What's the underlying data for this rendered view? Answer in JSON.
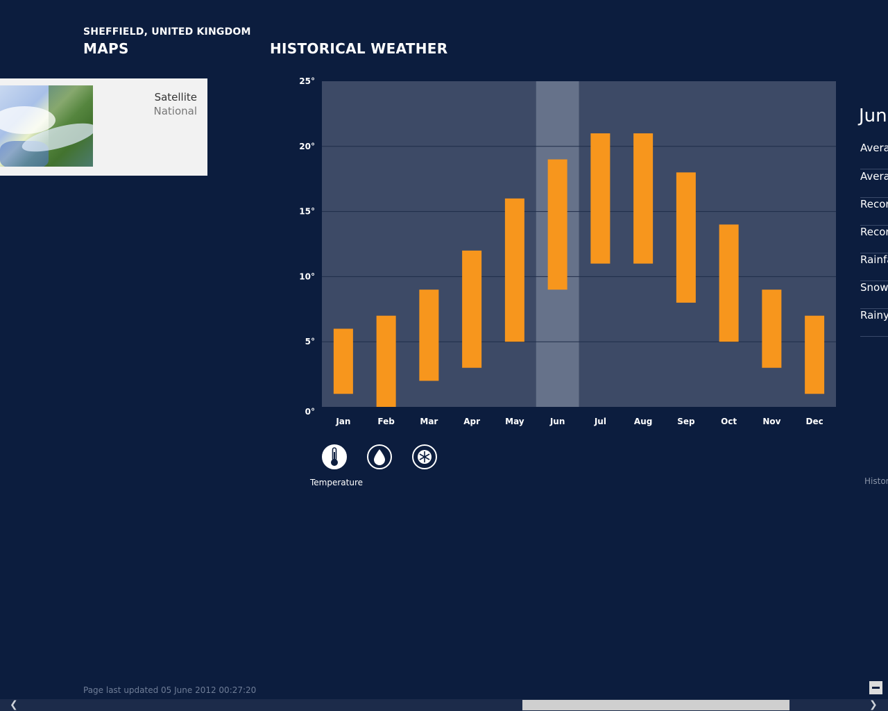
{
  "header": {
    "location": "SHEFFIELD, UNITED KINGDOM",
    "maps_title": "MAPS",
    "historical_title": "HISTORICAL WEATHER"
  },
  "map_tile": {
    "label": "Satellite",
    "sublabel": "National"
  },
  "chart_data": {
    "type": "bar",
    "subtype": "floating-range",
    "categories": [
      "Jan",
      "Feb",
      "Mar",
      "Apr",
      "May",
      "Jun",
      "Jul",
      "Aug",
      "Sep",
      "Oct",
      "Nov",
      "Dec"
    ],
    "series": [
      {
        "low": [
          1,
          0,
          2,
          3,
          5,
          9,
          11,
          11,
          8,
          5,
          3,
          1
        ],
        "high": [
          6,
          7,
          9,
          12,
          16,
          19,
          21,
          21,
          18,
          14,
          9,
          7
        ]
      }
    ],
    "yticks": [
      "0°",
      "5°",
      "10°",
      "15°",
      "20°",
      "25°"
    ],
    "ylim": [
      0,
      25
    ],
    "highlighted_category": "Jun",
    "grid": true,
    "bar_color": "#f7961d",
    "plot_bg": "#3d4a66",
    "highlight_bg": "#66728a"
  },
  "modes": {
    "temperature_label": "Temperature",
    "items": [
      {
        "icon": "thermometer-icon",
        "active": true
      },
      {
        "icon": "raindrop-icon",
        "active": false
      },
      {
        "icon": "snowflake-icon",
        "active": false
      }
    ]
  },
  "right_panel": {
    "month": "Jun",
    "items": [
      "Avera",
      "Avera",
      "Recor",
      "Recor",
      "Rainfa",
      "Snow",
      "Rainy"
    ],
    "footer": "Histor"
  },
  "footer": {
    "updated": "Page last updated 05 June 2012 00:27:20"
  },
  "scrollbar": {
    "left_arrow": "❮",
    "right_arrow": "❯"
  }
}
